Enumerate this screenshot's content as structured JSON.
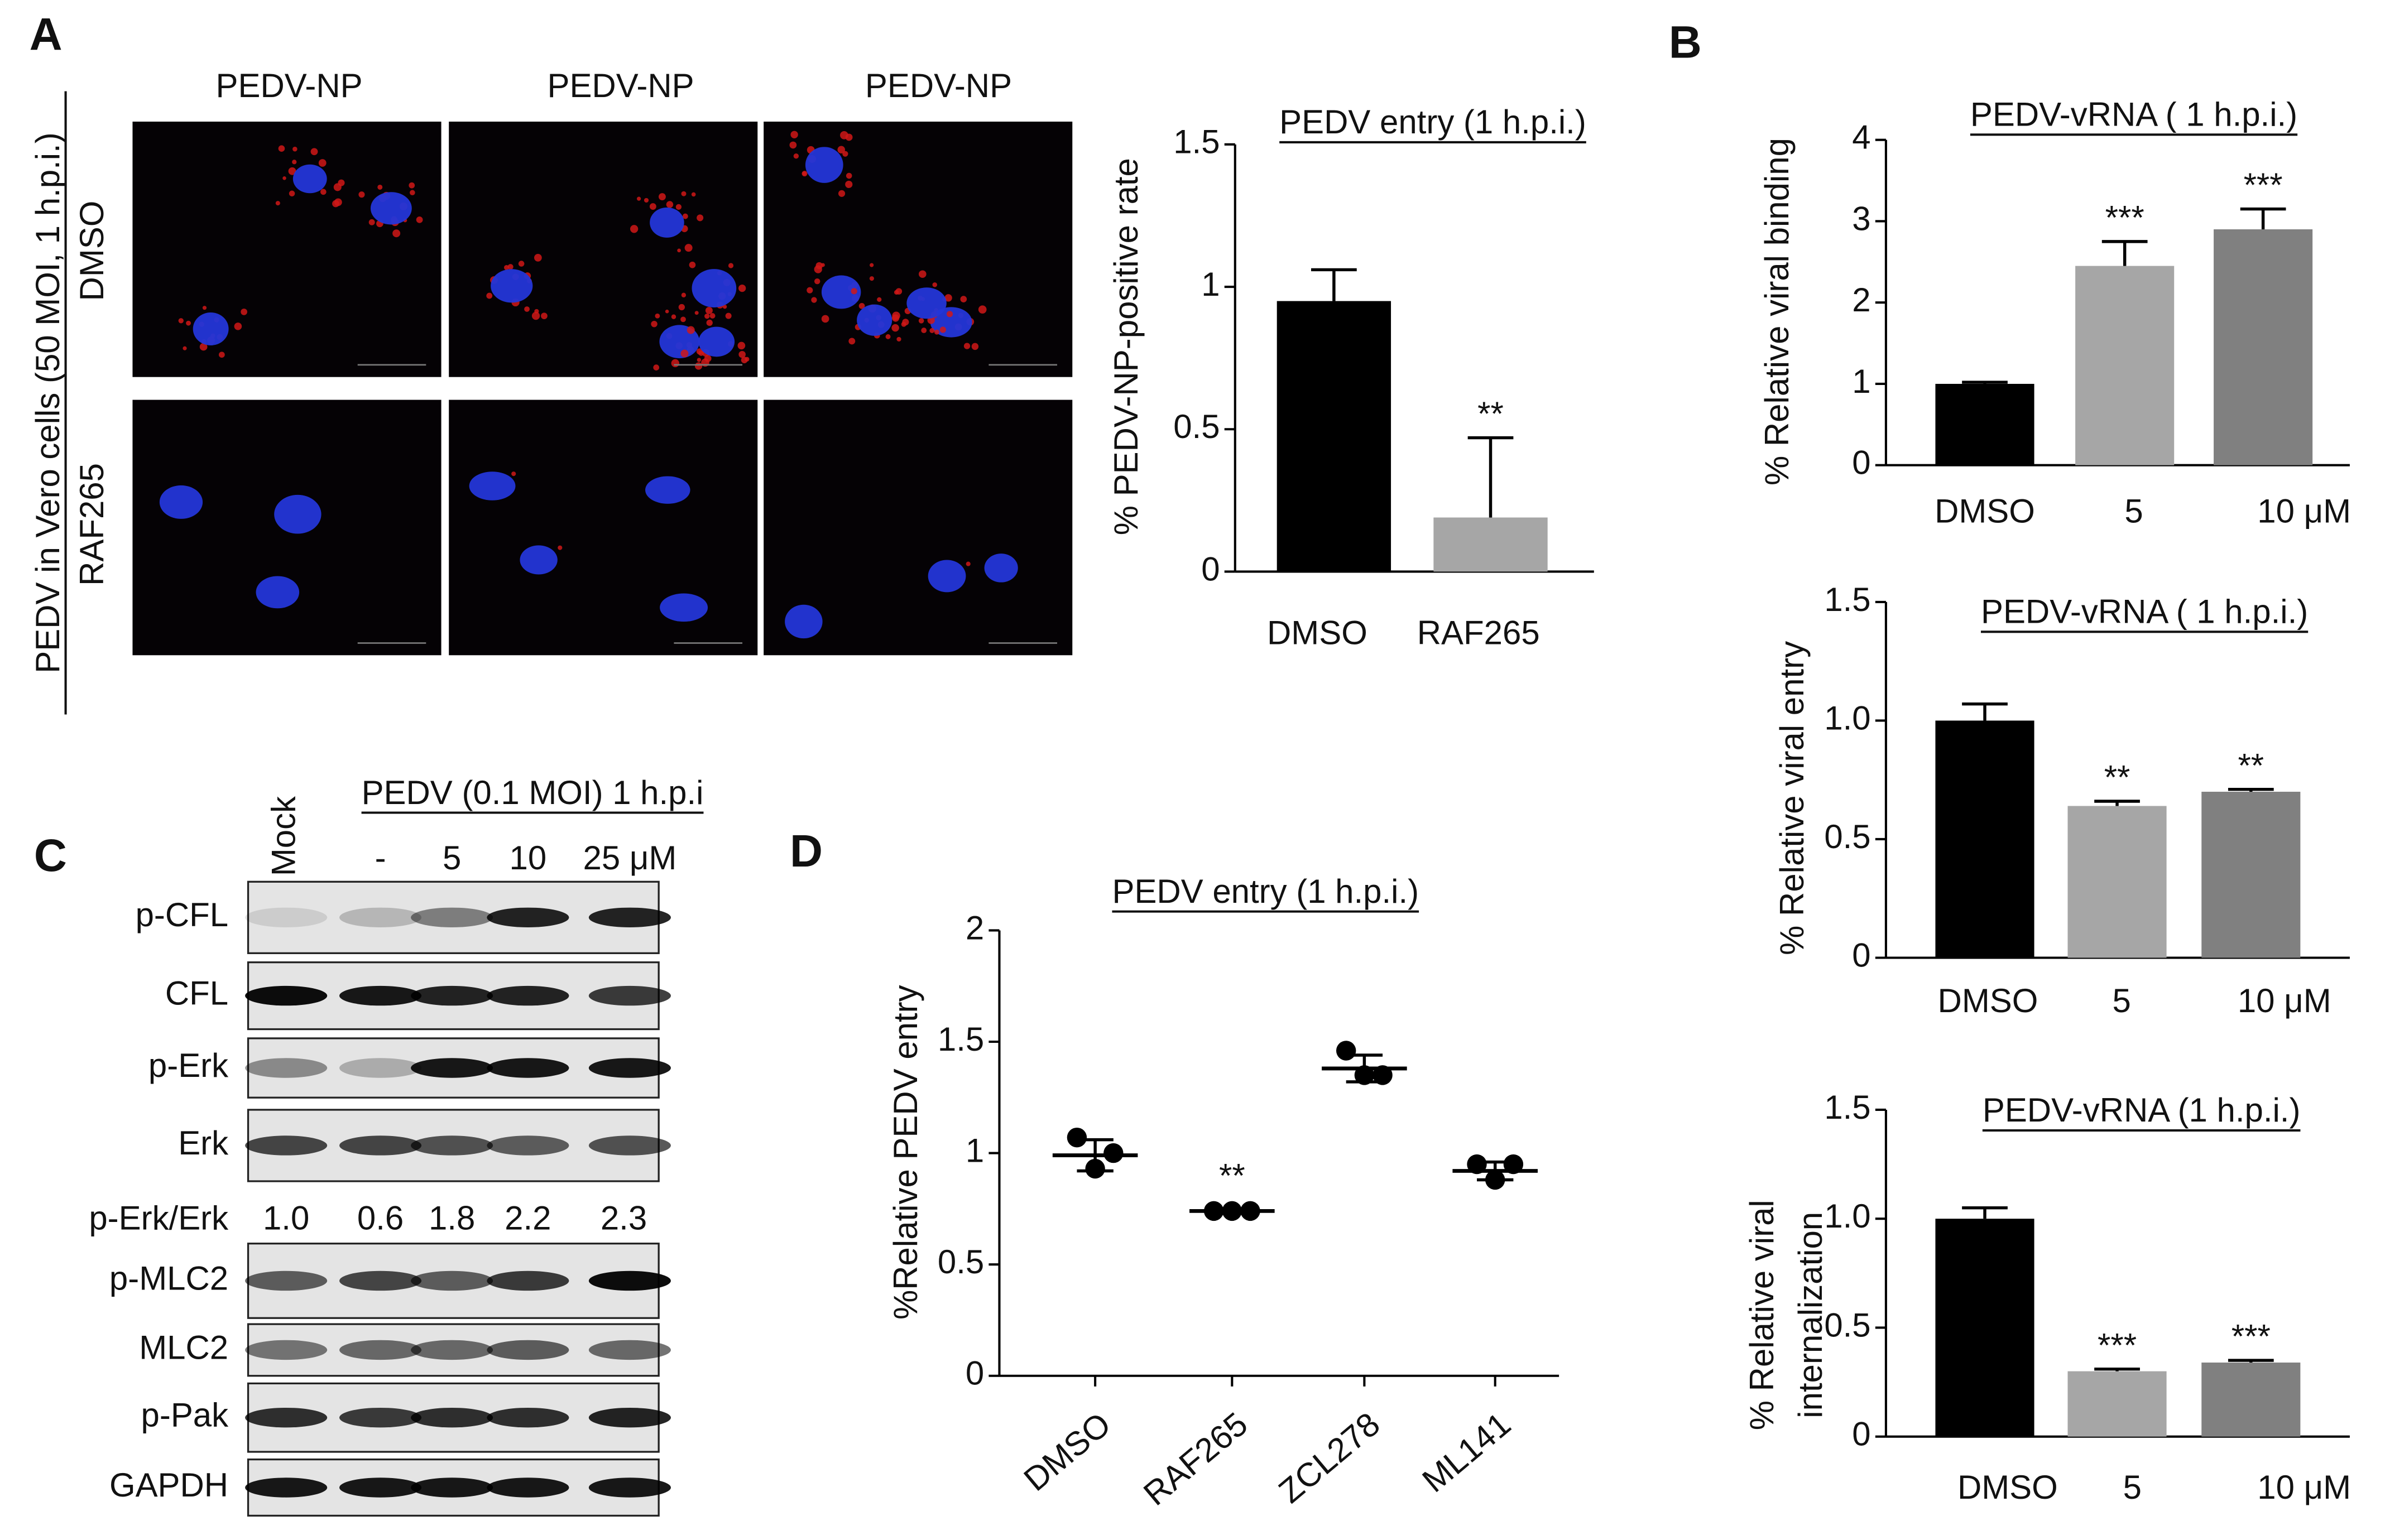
{
  "panel_labels": [
    "A",
    "B",
    "C",
    "D"
  ],
  "microscopy": {
    "column_headers": [
      "PEDV-NP",
      "PEDV-NP",
      "PEDV-NP"
    ],
    "row_labels": [
      "DMSO",
      "RAF265"
    ],
    "side_label": "PEDV in Vero cells (50 MOI, 1 h.p.i.)"
  },
  "western_blot": {
    "treatment": "PEDV (0.1 MOI) 1 h.p.i",
    "lanes": [
      "Mock",
      "-",
      "5",
      "10",
      "25 μM"
    ],
    "rows": [
      "p-CFL",
      "CFL",
      "p-Erk",
      "Erk",
      "p-MLC2",
      "MLC2",
      "p-Pak",
      "GAPDH"
    ],
    "ratio_label": "p-Erk/Erk",
    "ratios": [
      "1.0",
      "0.6",
      "1.8",
      "2.2",
      "2.3"
    ]
  },
  "chart_data": [
    {
      "type": "bar",
      "title": "PEDV entry (1 h.p.i.)",
      "ylabel": [
        "% PEDV-NP-positive rate"
      ],
      "categories": [
        "DMSO",
        "RAF265"
      ],
      "values": [
        0.95,
        0.19
      ],
      "errors": [
        0.11,
        0.28
      ],
      "colors": [
        "#000000",
        "#a6a6a6"
      ],
      "significance": [
        null,
        "**"
      ],
      "ylim": [
        0,
        1.5
      ],
      "yticks": [
        0,
        0.5,
        1,
        1.5
      ]
    },
    {
      "type": "bar",
      "title": "PEDV-vRNA ( 1 h.p.i.)",
      "ylabel": [
        "% Relative viral binding"
      ],
      "categories": [
        "DMSO",
        "5",
        "10 μM"
      ],
      "values": [
        1.0,
        2.45,
        2.9
      ],
      "errors": [
        0.02,
        0.3,
        0.25
      ],
      "colors": [
        "#000000",
        "#a6a6a6",
        "#808080"
      ],
      "significance": [
        null,
        "***",
        "***"
      ],
      "ylim": [
        0,
        4
      ],
      "yticks": [
        0,
        1,
        2,
        3,
        4
      ]
    },
    {
      "type": "bar",
      "title": "PEDV-vRNA ( 1 h.p.i.)",
      "ylabel": [
        "% Relative viral entry"
      ],
      "categories": [
        "DMSO",
        "5",
        "10  μM"
      ],
      "values": [
        1.0,
        0.64,
        0.7
      ],
      "errors": [
        0.07,
        0.02,
        0.01
      ],
      "colors": [
        "#000000",
        "#a6a6a6",
        "#808080"
      ],
      "significance": [
        null,
        "**",
        "**"
      ],
      "ylim": [
        0,
        1.5
      ],
      "yticks": [
        0,
        0.5,
        {
          "value": 1,
          "label": "1.0"
        },
        1.5
      ]
    },
    {
      "type": "bar",
      "title": "PEDV-vRNA (1 h.p.i.)",
      "ylabel": [
        "% Relative viral",
        "internalization"
      ],
      "categories": [
        "DMSO",
        "5",
        "10  μM"
      ],
      "values": [
        1.0,
        0.3,
        0.34
      ],
      "errors": [
        0.05,
        0.01,
        0.01
      ],
      "colors": [
        "#000000",
        "#a6a6a6",
        "#808080"
      ],
      "significance": [
        null,
        "***",
        "***"
      ],
      "ylim": [
        0,
        1.5
      ],
      "yticks": [
        0,
        0.5,
        {
          "value": 1,
          "label": "1.0"
        },
        1.5
      ]
    },
    {
      "type": "dot",
      "title": "PEDV entry  (1 h.p.i.)",
      "ylabel": [
        "%Relative PEDV entry"
      ],
      "categories": [
        "DMSO",
        "RAF265",
        "ZCL278",
        "ML141"
      ],
      "points": [
        [
          1.07,
          1.0,
          0.93
        ],
        [
          0.74,
          0.74,
          0.74
        ],
        [
          1.46,
          1.35,
          1.35
        ],
        [
          0.95,
          0.95,
          0.88
        ]
      ],
      "means": [
        0.99,
        0.74,
        1.38,
        0.92
      ],
      "sd": [
        0.07,
        0.01,
        0.06,
        0.04
      ],
      "significance": [
        null,
        "**",
        null,
        null
      ],
      "color": "#000000",
      "ylim": [
        0,
        2
      ],
      "yticks": [
        0,
        0.5,
        1,
        1.5,
        2
      ]
    }
  ]
}
